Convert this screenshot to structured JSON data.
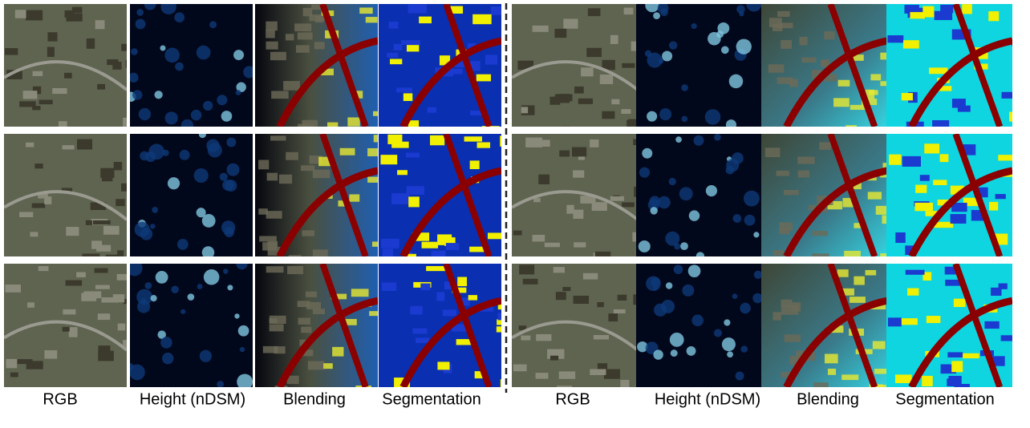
{
  "panels": [
    {
      "labels": [
        "RGB",
        "Height (nDSM)",
        "Blending",
        "Segmentation"
      ]
    },
    {
      "labels": [
        "RGB",
        "Height (nDSM)",
        "Blending",
        "Segmentation"
      ]
    }
  ]
}
